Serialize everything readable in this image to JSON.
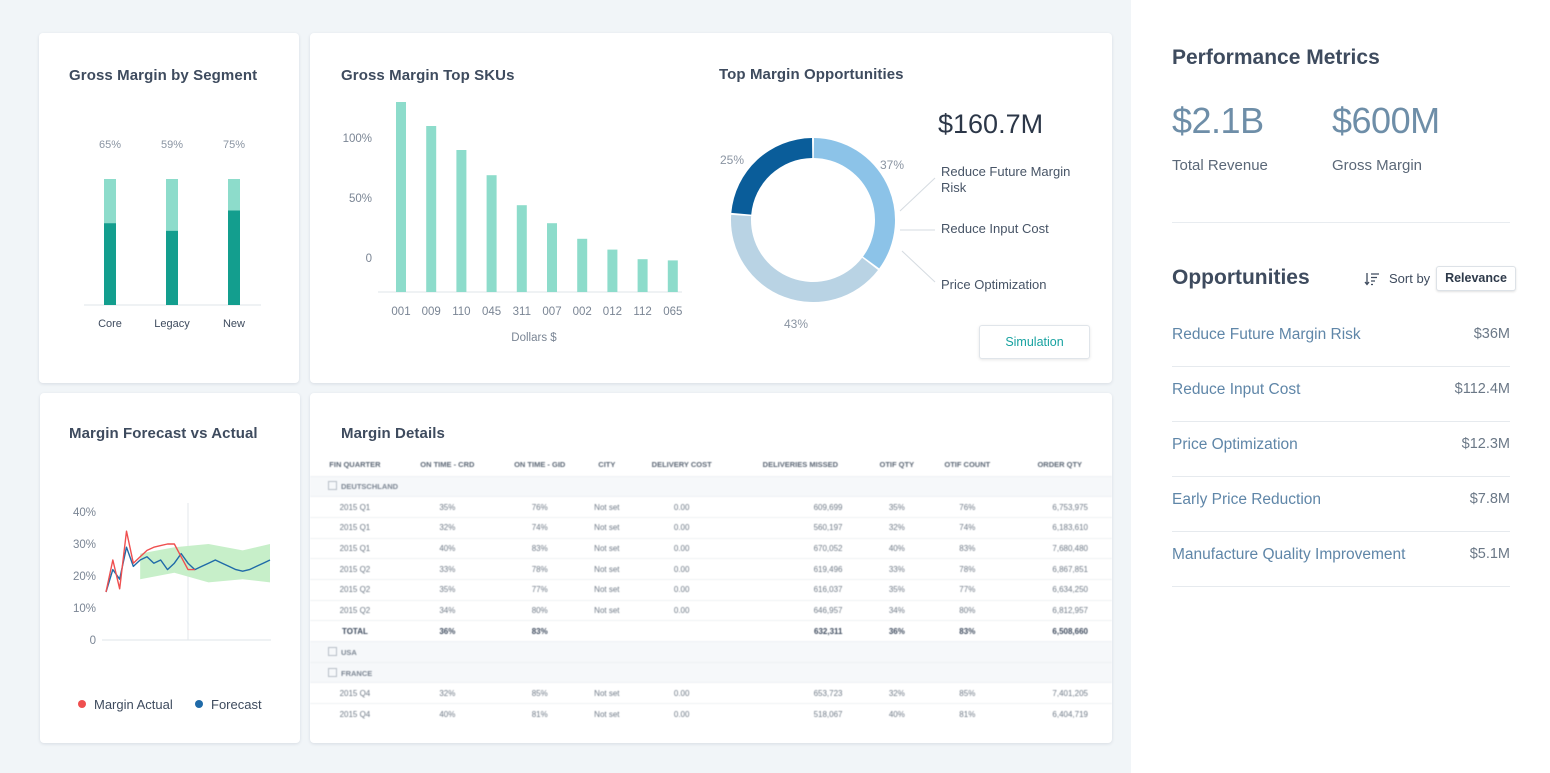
{
  "segment_card": {
    "title": "Gross Margin by Segment",
    "chart_data": {
      "type": "bar",
      "stacked": true,
      "title": "Gross Margin by Segment",
      "categories": [
        "Core",
        "Legacy",
        "New"
      ],
      "percent_labels": [
        "65%",
        "59%",
        "75%"
      ],
      "series": [
        {
          "name": "Margin",
          "values": [
            65,
            59,
            75
          ]
        },
        {
          "name": "Remainder",
          "values": [
            35,
            41,
            25
          ]
        }
      ],
      "ylim": [
        0,
        100
      ]
    }
  },
  "sku_card": {
    "title": "Gross Margin Top SKUs",
    "chart_data": {
      "type": "bar",
      "title": "Gross Margin Top SKUs",
      "categories": [
        "001",
        "009",
        "110",
        "045",
        "311",
        "007",
        "002",
        "012",
        "112",
        "065"
      ],
      "values": [
        130,
        110,
        90,
        69,
        44,
        29,
        16,
        7,
        -1,
        -2
      ],
      "yticks": [
        "100%",
        "50%",
        "0"
      ],
      "ylim": [
        -30,
        130
      ],
      "xlabel": "Dollars $"
    }
  },
  "opps_chart": {
    "title": "Top Margin Opportunities",
    "total": "$160.7M",
    "chart_data": {
      "type": "pie",
      "donut": true,
      "title": "Top Margin Opportunities",
      "labels": [
        "Reduce Future Margin Risk",
        "Reduce Input Cost",
        "Price Optimization"
      ],
      "values": [
        37,
        43,
        25
      ],
      "value_labels": [
        "37%",
        "43%",
        "25%"
      ],
      "colors": [
        "#8cc3e8",
        "#b9d3e4",
        "#0a5d9a"
      ]
    },
    "simulation_label": "Simulation"
  },
  "forecast_card": {
    "title": "Margin Forecast vs Actual",
    "chart_data": {
      "type": "line",
      "title": "Margin Forecast vs Actual",
      "yticks": [
        "40%",
        "30%",
        "20%",
        "10%",
        "0"
      ],
      "ylim": [
        0,
        40
      ],
      "series": [
        {
          "name": "Margin Actual",
          "color": "#ef4f4f",
          "x": [
            0,
            1,
            2,
            3,
            4,
            5,
            6,
            7,
            8,
            9,
            10,
            11,
            12,
            13
          ],
          "values": [
            15,
            25,
            16,
            34,
            24,
            26,
            28,
            29,
            29.5,
            30,
            30,
            26,
            22,
            22
          ]
        },
        {
          "name": "Forecast",
          "color": "#1f6aa8",
          "x": [
            0,
            1,
            2,
            3,
            4,
            5,
            6,
            7,
            8,
            9,
            10,
            11,
            12,
            13,
            14,
            15,
            16,
            17,
            18,
            19,
            20,
            21,
            22,
            23,
            24
          ],
          "values": [
            15,
            22,
            19,
            29,
            23,
            25,
            26,
            24,
            25,
            22,
            24,
            27,
            24,
            22,
            23,
            24,
            25,
            24,
            23,
            22,
            21.5,
            22,
            23,
            24,
            25
          ]
        },
        {
          "name": "Forecast Range Low",
          "x": [
            5,
            10,
            15,
            20,
            24
          ],
          "values": [
            19,
            21,
            18,
            19,
            18
          ]
        },
        {
          "name": "Forecast Range High",
          "x": [
            5,
            10,
            15,
            20,
            24
          ],
          "values": [
            27,
            29,
            30,
            28,
            30
          ]
        }
      ],
      "legend": [
        "Margin Actual",
        "Forecast"
      ],
      "legend_colors": [
        "#ef4f4f",
        "#1f6aa8"
      ]
    }
  },
  "details": {
    "title": "Margin Details",
    "columns": [
      "FIN QUARTER",
      "ON TIME - CRD",
      "ON TIME - GID",
      "CITY",
      "DELIVERY COST",
      "DELIVERIES MISSED",
      "OTIF QTY",
      "OTIF COUNT",
      "ORDER QTY"
    ],
    "groups": [
      {
        "name": "DEUTSCHLAND",
        "rows": [
          [
            "2015 Q1",
            "35%",
            "76%",
            "Not set",
            "0.00",
            "609,699",
            "35%",
            "76%",
            "6,753,975"
          ],
          [
            "2015 Q1",
            "32%",
            "74%",
            "Not set",
            "0.00",
            "560,197",
            "32%",
            "74%",
            "6,183,610"
          ],
          [
            "2015 Q1",
            "40%",
            "83%",
            "Not set",
            "0.00",
            "670,052",
            "40%",
            "83%",
            "7,680,480"
          ],
          [
            "2015 Q2",
            "33%",
            "78%",
            "Not set",
            "0.00",
            "619,496",
            "33%",
            "78%",
            "6,867,851"
          ],
          [
            "2015 Q2",
            "35%",
            "77%",
            "Not set",
            "0.00",
            "616,037",
            "35%",
            "77%",
            "6,634,250"
          ],
          [
            "2015 Q2",
            "34%",
            "80%",
            "Not set",
            "0.00",
            "646,957",
            "34%",
            "80%",
            "6,812,957"
          ]
        ],
        "total": [
          "TOTAL",
          "36%",
          "83%",
          "",
          "",
          "632,311",
          "36%",
          "83%",
          "6,508,660"
        ]
      },
      {
        "name": "USA",
        "rows": []
      },
      {
        "name": "FRANCE",
        "rows": [
          [
            "2015 Q4",
            "32%",
            "85%",
            "Not set",
            "0.00",
            "653,723",
            "32%",
            "85%",
            "7,401,205"
          ],
          [
            "2015 Q4",
            "40%",
            "81%",
            "Not set",
            "0.00",
            "518,067",
            "40%",
            "81%",
            "6,404,719"
          ]
        ]
      }
    ]
  },
  "panel": {
    "title": "Performance Metrics",
    "metrics": [
      {
        "value": "$2.1B",
        "label": "Total Revenue"
      },
      {
        "value": "$600M",
        "label": "Gross Margin"
      }
    ],
    "opportunities_title": "Opportunities",
    "sort_label": "Sort by",
    "sort_value": "Relevance",
    "opportunities": [
      {
        "name": "Reduce Future Margin Risk",
        "value": "$36M"
      },
      {
        "name": "Reduce Input Cost",
        "value": "$112.4M"
      },
      {
        "name": "Price Optimization",
        "value": "$12.3M"
      },
      {
        "name": "Early Price Reduction",
        "value": "$7.8M"
      },
      {
        "name": "Manufacture Quality Improvement",
        "value": "$5.1M"
      }
    ]
  },
  "colors": {
    "teal_dark": "#139e8e",
    "teal_light": "#8ddccb",
    "forecast_band": "#c7efc9"
  }
}
